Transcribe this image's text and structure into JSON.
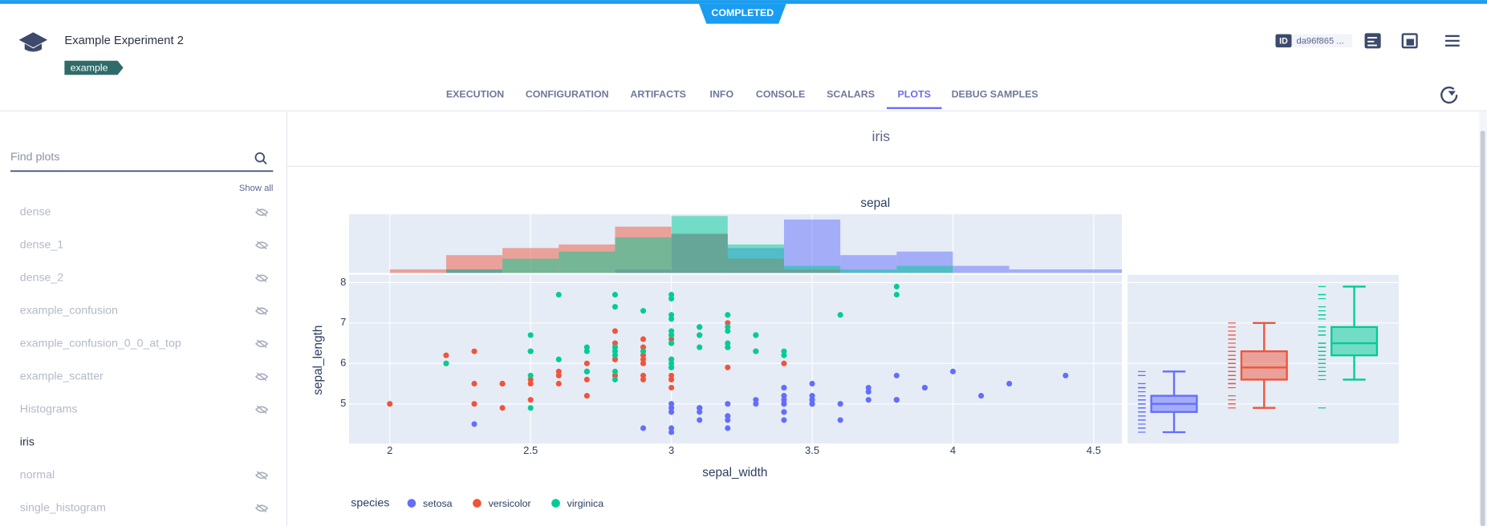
{
  "header": {
    "status": "COMPLETED",
    "title": "Example Experiment 2",
    "tag": "example",
    "id_label": "ID",
    "id": "da96f865 ..."
  },
  "tabs": {
    "items": [
      "EXECUTION",
      "CONFIGURATION",
      "ARTIFACTS",
      "INFO",
      "CONSOLE",
      "SCALARS",
      "PLOTS",
      "DEBUG SAMPLES"
    ],
    "active": 6
  },
  "sidebar": {
    "search_placeholder": "Find plots",
    "show_all": "Show all",
    "items": [
      "dense",
      "dense_1",
      "dense_2",
      "example_confusion",
      "example_confusion_0_0_at_top",
      "example_scatter",
      "Histograms",
      "iris",
      "normal",
      "single_histogram"
    ],
    "selected": 7
  },
  "panel": {
    "title": "iris"
  },
  "chart_data": {
    "type": "scatter",
    "title": "sepal",
    "x_label": "sepal_width",
    "y_label": "sepal_length",
    "legend_title": "species",
    "grid": true,
    "xlim": [
      1.855,
      4.6
    ],
    "ylim": [
      4.02,
      8.19
    ],
    "xticks": [
      2,
      2.5,
      3,
      3.5,
      4,
      4.5
    ],
    "yticks": [
      5,
      6,
      7,
      8
    ],
    "histogram_bins": [
      2.0,
      2.2,
      2.4,
      2.6,
      2.8,
      3.0,
      3.2,
      3.4,
      3.6,
      3.8,
      4.0,
      4.2,
      4.4,
      4.6
    ],
    "histogram_ylim": [
      0,
      16.5
    ],
    "series": [
      {
        "name": "setosa",
        "color": "#636efa",
        "x": [
          3.5,
          3.0,
          3.2,
          3.1,
          3.6,
          3.9,
          3.4,
          3.4,
          2.9,
          3.1,
          3.7,
          3.4,
          3.0,
          3.0,
          4.0,
          4.4,
          3.9,
          3.5,
          3.8,
          3.8,
          3.4,
          3.7,
          3.6,
          3.3,
          3.4,
          3.0,
          3.4,
          3.5,
          3.4,
          3.2,
          3.1,
          3.4,
          4.1,
          4.2,
          3.1,
          3.2,
          3.5,
          3.1,
          3.0,
          3.4,
          3.5,
          2.3,
          3.2,
          3.5,
          3.8,
          3.0,
          3.8,
          3.2,
          3.7,
          3.3
        ],
        "values": [
          5.1,
          4.9,
          4.7,
          4.6,
          5.0,
          5.4,
          4.6,
          5.0,
          4.4,
          4.9,
          5.4,
          4.8,
          4.8,
          4.3,
          5.8,
          5.7,
          5.4,
          5.1,
          5.7,
          5.1,
          5.4,
          5.1,
          4.6,
          5.1,
          4.8,
          5.0,
          5.0,
          5.2,
          5.2,
          4.7,
          4.8,
          5.4,
          5.2,
          5.5,
          4.9,
          5.0,
          5.5,
          4.9,
          4.4,
          5.1,
          5.0,
          4.5,
          4.4,
          5.0,
          5.1,
          4.8,
          5.1,
          4.6,
          5.3,
          5.0
        ],
        "histogram_counts": [
          0,
          1,
          0,
          0,
          1,
          11,
          7,
          15,
          5,
          6,
          2,
          1,
          1
        ],
        "box": {
          "lowerfence": 4.3,
          "q1": 4.8,
          "median": 5.0,
          "q3": 5.2,
          "upperfence": 5.8
        }
      },
      {
        "name": "versicolor",
        "color": "#ef553b",
        "x": [
          3.2,
          3.2,
          3.1,
          2.3,
          2.8,
          2.8,
          3.3,
          2.4,
          2.9,
          2.7,
          2.0,
          3.0,
          2.2,
          2.9,
          2.9,
          3.1,
          3.0,
          2.7,
          2.2,
          2.5,
          3.2,
          2.8,
          2.5,
          2.8,
          2.9,
          3.0,
          2.8,
          3.0,
          2.9,
          2.6,
          2.4,
          2.4,
          2.7,
          2.7,
          3.0,
          3.4,
          3.1,
          2.3,
          3.0,
          2.5,
          2.6,
          3.0,
          2.6,
          2.3,
          2.7,
          3.0,
          2.9,
          2.9,
          2.5,
          2.8
        ],
        "values": [
          7.0,
          6.4,
          6.9,
          5.5,
          6.5,
          5.7,
          6.3,
          4.9,
          6.6,
          5.2,
          5.0,
          5.9,
          6.0,
          6.1,
          5.6,
          6.7,
          5.6,
          5.8,
          6.2,
          5.6,
          5.9,
          6.1,
          6.3,
          6.1,
          6.4,
          6.6,
          6.8,
          6.7,
          6.0,
          5.7,
          5.5,
          5.5,
          5.8,
          6.0,
          5.4,
          6.0,
          6.7,
          6.3,
          5.6,
          5.5,
          5.5,
          6.1,
          5.8,
          5.0,
          5.6,
          5.7,
          5.7,
          6.2,
          5.1,
          5.7
        ],
        "histogram_counts": [
          1,
          5,
          7,
          8,
          13,
          11,
          4,
          1,
          0,
          0,
          0,
          0,
          0
        ],
        "box": {
          "lowerfence": 4.9,
          "q1": 5.6,
          "median": 5.9,
          "q3": 6.3,
          "upperfence": 7.0
        }
      },
      {
        "name": "virginica",
        "color": "#00cc96",
        "x": [
          3.3,
          2.7,
          3.0,
          2.9,
          3.0,
          3.0,
          2.5,
          2.9,
          2.5,
          3.6,
          3.2,
          2.7,
          3.0,
          2.5,
          2.8,
          3.2,
          3.0,
          3.8,
          2.6,
          2.2,
          3.2,
          2.8,
          2.8,
          2.7,
          3.3,
          3.2,
          2.8,
          3.0,
          2.8,
          3.0,
          2.8,
          3.8,
          2.8,
          2.8,
          2.6,
          3.0,
          3.4,
          3.1,
          3.0,
          3.1,
          3.1,
          3.1,
          2.7,
          3.2,
          3.3,
          3.0,
          2.5,
          3.0,
          3.4,
          3.0
        ],
        "values": [
          6.3,
          5.8,
          7.1,
          6.3,
          6.5,
          7.6,
          4.9,
          7.3,
          6.7,
          7.2,
          6.5,
          6.4,
          6.8,
          5.7,
          5.8,
          6.4,
          6.5,
          7.7,
          7.7,
          6.0,
          6.9,
          5.6,
          7.7,
          6.3,
          6.7,
          7.2,
          6.2,
          6.1,
          6.4,
          7.2,
          7.4,
          7.9,
          6.4,
          6.3,
          6.1,
          7.7,
          6.3,
          6.4,
          6.0,
          6.9,
          6.7,
          6.9,
          5.8,
          6.8,
          6.7,
          6.7,
          6.3,
          6.5,
          6.2,
          5.9
        ],
        "histogram_counts": [
          0,
          1,
          4,
          6,
          10,
          16,
          8,
          2,
          1,
          2,
          0,
          0,
          0
        ],
        "box": {
          "lowerfence": 5.6,
          "q1": 6.2,
          "median": 6.5,
          "q3": 6.9,
          "upperfence": 7.9
        }
      }
    ]
  }
}
